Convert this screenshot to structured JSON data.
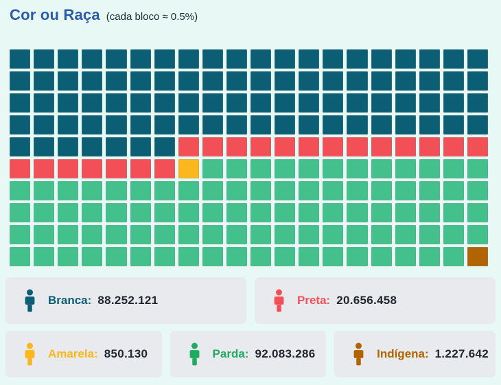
{
  "title": "Cor ou Raça",
  "subtitle": "(cada bloco ≈ 0.5%)",
  "categories": [
    {
      "id": "branca",
      "label": "Branca:",
      "value": "88.252.121",
      "color": "#0b5e74",
      "legend_color": "#0b5e74"
    },
    {
      "id": "preta",
      "label": "Preta:",
      "value": "20.656.458",
      "color": "#f25056",
      "legend_color": "#f25056"
    },
    {
      "id": "amarela",
      "label": "Amarela:",
      "value": "850.130",
      "color": "#fcb61e",
      "legend_color": "#fcb61e"
    },
    {
      "id": "parda",
      "label": "Parda:",
      "value": "92.083.286",
      "color": "#44c08c",
      "legend_color": "#21ab62"
    },
    {
      "id": "indigena",
      "label": "Indígena:",
      "value": "1.227.642",
      "color": "#b26403",
      "legend_color": "#b26403"
    }
  ],
  "waffle": {
    "columns": 20,
    "rows": 10,
    "sequence": [
      {
        "category_index": 0,
        "blocks": 87
      },
      {
        "category_index": 1,
        "blocks": 20
      },
      {
        "category_index": 2,
        "blocks": 1
      },
      {
        "category_index": 3,
        "blocks": 91
      },
      {
        "category_index": 4,
        "blocks": 1
      }
    ]
  },
  "legend": {
    "icon": "person-icon",
    "rows": [
      [
        0,
        1
      ],
      [
        2,
        3,
        4
      ]
    ]
  },
  "chart_data": {
    "type": "waffle",
    "title": "Cor ou Raça",
    "subtitle": "(cada bloco ≈ 0.5%)",
    "unit_per_block": "0.5%",
    "grid": {
      "columns": 20,
      "rows": 10,
      "total_blocks": 200
    },
    "categories": [
      "Branca",
      "Preta",
      "Amarela",
      "Parda",
      "Indígena"
    ],
    "values": [
      88252121,
      20656458,
      850130,
      92083286,
      1227642
    ],
    "blocks": [
      87,
      20,
      1,
      91,
      1
    ],
    "colors": [
      "#0b5e74",
      "#f25056",
      "#fcb61e",
      "#44c08c",
      "#b26403"
    ],
    "legend_position": "bottom"
  }
}
